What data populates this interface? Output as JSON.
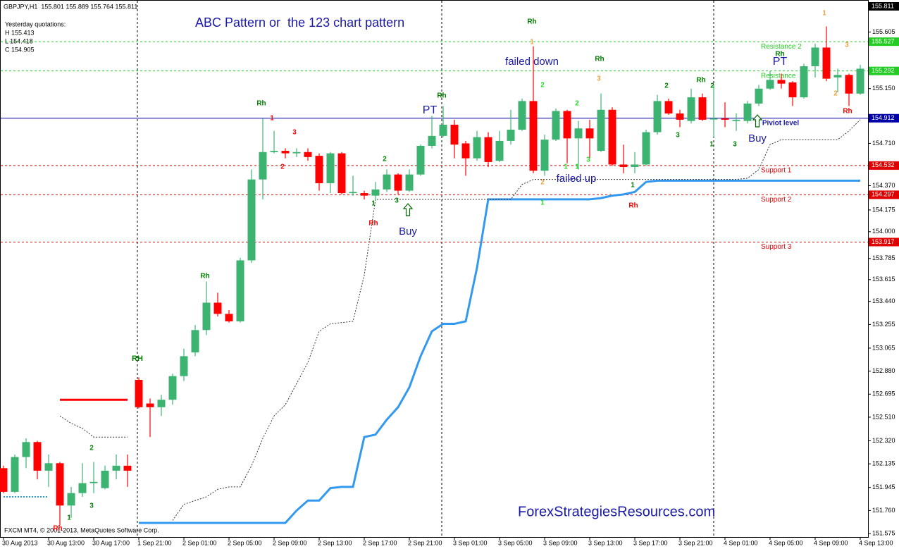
{
  "chart_data": {
    "type": "candlestick",
    "header": "GBPJPY,H1  155.801 155.889 155.764 155.811",
    "info": [
      "Yesterday quotations:",
      "H 155.413",
      "L 154.418",
      "C 154.905"
    ],
    "title": "ABC Pattern or  the 123 chart pattern",
    "watermark": "ForexStrategiesResources.com",
    "footer": "FXCM MT4, © 2001-2013, MetaQuotes Software Corp.",
    "categories": [
      "30 Aug 2013",
      null,
      null,
      null,
      "30 Aug 13:00",
      null,
      null,
      null,
      "30 Aug 17:00",
      null,
      null,
      null,
      "1 Sep 21:00",
      null,
      null,
      null,
      "2 Sep 01:00",
      null,
      null,
      null,
      "2 Sep 05:00",
      null,
      null,
      null,
      "2 Sep 09:00",
      null,
      null,
      null,
      "2 Sep 13:00",
      null,
      null,
      null,
      "2 Sep 17:00",
      null,
      null,
      null,
      "2 Sep 21:00",
      null,
      null,
      null,
      "3 Sep 01:00",
      null,
      null,
      null,
      "3 Sep 05:00",
      null,
      null,
      null,
      "3 Sep 09:00",
      null,
      null,
      null,
      "3 Sep 13:00",
      null,
      null,
      null,
      "3 Sep 17:00",
      null,
      null,
      null,
      "3 Sep 21:00",
      null,
      null,
      null,
      "4 Sep 01:00",
      null,
      null,
      null,
      "4 Sep 05:00",
      null,
      null,
      null,
      "4 Sep 09:00",
      null,
      null,
      null,
      "4 Sep 13:00"
    ],
    "candles": [
      [
        152.1,
        152.12,
        151.9,
        151.91
      ],
      [
        151.91,
        152.21,
        151.9,
        152.19
      ],
      [
        152.19,
        152.34,
        152.1,
        152.31
      ],
      [
        152.31,
        152.32,
        152.01,
        152.08
      ],
      [
        152.08,
        152.21,
        151.95,
        152.14
      ],
      [
        152.14,
        152.15,
        151.64,
        151.8
      ],
      [
        151.8,
        151.95,
        151.7,
        151.9
      ],
      [
        151.9,
        152.14,
        151.87,
        151.98
      ],
      [
        151.98,
        152.15,
        151.9,
        151.99
      ],
      [
        151.94,
        152.12,
        151.93,
        152.08
      ],
      [
        152.08,
        152.21,
        152.01,
        152.12
      ],
      [
        152.12,
        152.21,
        151.95,
        152.08
      ],
      [
        152.81,
        152.83,
        152.58,
        152.59
      ],
      [
        152.62,
        152.66,
        152.35,
        152.59
      ],
      [
        152.59,
        152.69,
        152.52,
        152.65
      ],
      [
        152.65,
        152.86,
        152.61,
        152.84
      ],
      [
        152.84,
        153.06,
        152.8,
        153.0
      ],
      [
        153.03,
        153.25,
        153.0,
        153.21
      ],
      [
        153.21,
        153.6,
        153.17,
        153.43
      ],
      [
        153.43,
        153.51,
        153.32,
        153.34
      ],
      [
        153.34,
        153.37,
        153.27,
        153.28
      ],
      [
        153.28,
        153.79,
        153.27,
        153.77
      ],
      [
        153.77,
        154.5,
        153.75,
        154.42
      ],
      [
        154.42,
        154.91,
        154.26,
        154.64
      ],
      [
        154.64,
        154.81,
        154.63,
        154.65
      ],
      [
        154.65,
        154.67,
        154.59,
        154.63
      ],
      [
        154.63,
        154.67,
        154.6,
        154.64
      ],
      [
        154.64,
        154.67,
        154.57,
        154.6
      ],
      [
        154.61,
        154.63,
        154.33,
        154.39
      ],
      [
        154.39,
        154.64,
        154.31,
        154.63
      ],
      [
        154.63,
        154.64,
        154.3,
        154.31
      ],
      [
        154.31,
        154.45,
        154.29,
        154.32
      ],
      [
        154.31,
        154.33,
        154.26,
        154.29
      ],
      [
        154.29,
        154.4,
        154.25,
        154.34
      ],
      [
        154.34,
        154.5,
        154.32,
        154.46
      ],
      [
        154.46,
        154.47,
        154.3,
        154.33
      ],
      [
        154.33,
        154.5,
        154.32,
        154.46
      ],
      [
        154.46,
        154.7,
        154.45,
        154.69
      ],
      [
        154.69,
        154.93,
        154.67,
        154.77
      ],
      [
        154.77,
        155.01,
        154.76,
        154.86
      ],
      [
        154.86,
        154.9,
        154.59,
        154.7
      ],
      [
        154.71,
        154.73,
        154.45,
        154.59
      ],
      [
        154.59,
        154.81,
        154.57,
        154.76
      ],
      [
        154.76,
        154.8,
        154.52,
        154.56
      ],
      [
        154.57,
        154.81,
        154.56,
        154.73
      ],
      [
        154.73,
        154.98,
        154.7,
        154.82
      ],
      [
        154.82,
        155.07,
        154.81,
        155.05
      ],
      [
        155.05,
        155.49,
        154.47,
        154.49
      ],
      [
        154.49,
        154.78,
        154.45,
        154.74
      ],
      [
        154.74,
        154.99,
        154.73,
        154.97
      ],
      [
        154.97,
        154.98,
        154.55,
        154.75
      ],
      [
        154.75,
        154.89,
        154.5,
        154.83
      ],
      [
        154.83,
        154.9,
        154.59,
        154.75
      ],
      [
        154.65,
        155.11,
        154.64,
        154.98
      ],
      [
        154.98,
        155.0,
        154.53,
        154.54
      ],
      [
        154.54,
        154.7,
        154.47,
        154.52
      ],
      [
        154.52,
        154.64,
        154.47,
        154.54
      ],
      [
        154.54,
        154.82,
        154.53,
        154.8
      ],
      [
        154.8,
        155.1,
        154.78,
        155.05
      ],
      [
        155.05,
        155.07,
        154.94,
        154.95
      ],
      [
        154.95,
        154.98,
        154.84,
        154.9
      ],
      [
        154.89,
        155.15,
        154.87,
        155.08
      ],
      [
        155.08,
        155.11,
        154.89,
        154.9
      ],
      [
        154.91,
        155.18,
        154.76,
        154.91
      ],
      [
        154.91,
        155.04,
        154.84,
        154.9
      ],
      [
        154.89,
        154.95,
        154.81,
        154.9
      ],
      [
        154.89,
        155.05,
        154.87,
        155.03
      ],
      [
        155.03,
        155.18,
        155.01,
        155.15
      ],
      [
        155.15,
        155.29,
        155.14,
        155.22
      ],
      [
        155.22,
        155.27,
        155.15,
        155.19
      ],
      [
        155.2,
        155.21,
        155.01,
        155.08
      ],
      [
        155.08,
        155.35,
        155.07,
        155.33
      ],
      [
        155.33,
        155.51,
        155.24,
        155.48
      ],
      [
        155.48,
        155.65,
        155.21,
        155.23
      ],
      [
        155.24,
        155.31,
        155.12,
        155.26
      ],
      [
        155.26,
        155.27,
        155.01,
        155.11
      ],
      [
        155.11,
        155.34,
        155.1,
        155.31
      ]
    ],
    "up_color": "#3cb371",
    "down_color": "#ff0000",
    "ylim": [
      151.547,
      155.862
    ],
    "yticks": [
      155.605,
      {
        "value": 155.15,
        "label": "155.150"
      },
      {
        "value": 154.71,
        "label": "154.710"
      },
      {
        "value": 154.37,
        "label": "154.370"
      },
      154.175,
      {
        "value": 154,
        "label": "154.000"
      },
      153.785,
      153.615,
      {
        "value": 153.44,
        "label": "153.440"
      },
      153.255,
      153.065,
      {
        "value": 152.88,
        "label": "152.880"
      },
      152.695,
      {
        "value": 152.51,
        "label": "152.510"
      },
      {
        "value": 152.32,
        "label": "152.320"
      },
      152.135,
      151.945,
      {
        "value": 151.76,
        "label": "151.760"
      },
      151.575
    ],
    "last_price": 155.811,
    "levels": [
      {
        "value": 155.527,
        "name": "Resistance 2",
        "color": "#22cc22",
        "style": "dashed"
      },
      {
        "value": 155.292,
        "name": "Resistance",
        "color": "#22cc22",
        "style": "dashed"
      },
      {
        "value": 154.912,
        "color": "#0000aa",
        "style": "solid"
      },
      {
        "value": 154.532,
        "name": "Support 1",
        "color": "#e00000",
        "style": "dashed"
      },
      {
        "value": 154.297,
        "name": "Support 2",
        "color": "#e00000",
        "style": "dashed"
      },
      {
        "value": 153.917,
        "name": "Support 3",
        "color": "#e00000",
        "style": "dashed"
      }
    ],
    "lines": [
      {
        "color": "#3399ee",
        "width": 3,
        "dash": "none",
        "values": [
          null,
          null,
          null,
          null,
          null,
          null,
          null,
          null,
          null,
          null,
          null,
          null,
          151.66,
          151.66,
          151.66,
          151.66,
          151.66,
          151.66,
          151.66,
          151.66,
          151.66,
          151.66,
          151.66,
          151.66,
          151.66,
          151.66,
          151.76,
          151.84,
          151.84,
          151.94,
          151.95,
          151.95,
          152.35,
          152.37,
          152.49,
          152.59,
          152.75,
          153.0,
          153.2,
          153.26,
          153.26,
          153.28,
          153.71,
          154.26,
          154.26,
          154.26,
          154.26,
          154.26,
          154.26,
          154.26,
          154.26,
          154.26,
          154.26,
          154.27,
          154.29,
          154.3,
          154.32,
          154.4,
          154.41,
          154.41,
          154.41,
          154.41,
          154.41,
          154.41,
          154.41,
          154.41,
          154.41,
          154.41,
          154.41,
          154.41,
          154.41,
          154.41,
          154.41,
          154.41,
          154.41,
          154.41,
          154.41
        ]
      },
      {
        "color": "#3399ee",
        "width": 2,
        "dash": "2 2",
        "values": [
          151.87,
          151.87,
          151.87,
          151.87,
          151.87,
          null,
          null,
          null,
          null,
          null,
          null,
          null,
          null,
          null,
          null,
          null,
          null,
          null,
          null,
          null,
          null,
          null,
          null,
          null,
          null,
          null,
          null,
          null,
          null,
          null,
          null,
          null,
          null,
          null,
          null,
          null,
          null,
          null,
          null,
          null,
          null,
          null,
          null,
          null,
          null,
          null,
          null,
          null,
          null,
          null,
          null,
          null,
          null,
          null,
          null,
          null,
          null,
          null,
          null,
          null,
          null,
          null,
          null,
          null,
          null,
          null,
          null,
          null,
          null,
          null,
          null,
          null,
          null,
          null,
          null,
          null,
          null
        ]
      },
      {
        "color": "#ff0000",
        "width": 3,
        "dash": "none",
        "values": [
          null,
          null,
          null,
          null,
          null,
          152.65,
          152.65,
          152.65,
          152.65,
          152.65,
          152.65,
          152.65,
          null,
          null,
          null,
          null,
          null,
          null,
          null,
          null,
          null,
          null,
          null,
          null,
          null,
          null,
          null,
          null,
          null,
          null,
          null,
          null,
          null,
          null,
          null,
          null,
          null,
          null,
          null,
          null,
          null,
          null,
          null,
          null,
          null,
          null,
          null,
          null,
          null,
          null,
          null,
          null,
          null,
          null,
          null,
          null,
          null,
          null,
          null,
          null,
          null,
          null,
          null,
          null,
          null,
          null,
          null,
          null,
          null,
          null,
          null,
          null,
          null,
          null,
          null,
          null,
          null
        ]
      },
      {
        "color": "#333333",
        "width": 1,
        "dash": "2 2",
        "values": [
          null,
          null,
          null,
          null,
          null,
          152.52,
          152.46,
          152.42,
          152.35,
          152.35,
          152.35,
          152.35,
          null,
          null,
          null,
          151.68,
          151.81,
          151.84,
          151.87,
          151.93,
          151.95,
          151.95,
          152.12,
          152.34,
          152.52,
          152.61,
          152.78,
          152.95,
          153.2,
          153.26,
          153.27,
          153.28,
          153.65,
          154.26,
          154.26,
          154.26,
          154.26,
          154.26,
          154.26,
          154.26,
          154.26,
          154.26,
          154.26,
          154.26,
          154.26,
          154.26,
          154.38,
          154.42,
          154.42,
          154.42,
          154.42,
          154.42,
          154.42,
          154.42,
          154.42,
          154.42,
          154.42,
          154.42,
          154.42,
          154.42,
          154.42,
          154.42,
          154.42,
          154.42,
          154.42,
          154.42,
          154.43,
          154.5,
          154.7,
          154.74,
          154.74,
          154.74,
          154.74,
          154.74,
          154.74,
          154.81,
          154.9
        ]
      }
    ],
    "annotations": [
      {
        "text": "RH",
        "color": "#008000"
      },
      {
        "text": "Rh",
        "color": "#008000"
      },
      {
        "text": "Rh",
        "color": "#008000"
      },
      {
        "text": "Rh",
        "color": "#ff0000"
      },
      {
        "text": "Rh",
        "color": "#008000"
      },
      {
        "text": "Rh",
        "color": "#008000"
      },
      {
        "text": "Rh",
        "color": "#008000"
      },
      {
        "text": "Rh",
        "color": "#ff0000"
      },
      {
        "text": "Rh",
        "color": "#008000"
      },
      {
        "text": "Rh",
        "color": "#008000"
      },
      {
        "text": "Rh",
        "color": "#ff0000"
      },
      {
        "text": "Rh",
        "color": "#ff0000"
      },
      {
        "text": "1",
        "color": "#ff0000"
      },
      {
        "text": "3",
        "color": "#ff0000"
      },
      {
        "text": "2",
        "color": "#ff0000"
      },
      {
        "text": "2",
        "color": "#008000"
      },
      {
        "text": "3",
        "color": "#008000"
      },
      {
        "text": "1",
        "color": "#008000"
      },
      {
        "text": "2",
        "color": "#008000"
      },
      {
        "text": "1",
        "color": "#008000"
      },
      {
        "text": "3",
        "color": "#008000"
      },
      {
        "text": "1",
        "color": "#e8a33d"
      },
      {
        "text": "2",
        "color": "#22dd22"
      },
      {
        "text": "2",
        "color": "#e8a33d"
      },
      {
        "text": "1",
        "color": "#22dd22"
      },
      {
        "text": "3",
        "color": "#e8a33d"
      },
      {
        "text": "2",
        "color": "#22dd22"
      },
      {
        "text": "1",
        "color": "#22dd22"
      },
      {
        "text": "1",
        "color": "#22dd22"
      },
      {
        "text": "3",
        "color": "#22dd22"
      },
      {
        "text": "1",
        "color": "#008000"
      },
      {
        "text": "2",
        "color": "#008000"
      },
      {
        "text": "3",
        "color": "#008000"
      },
      {
        "text": "2",
        "color": "#008000"
      },
      {
        "text": "1",
        "color": "#008000"
      },
      {
        "text": "3",
        "color": "#008000"
      },
      {
        "text": "1",
        "color": "#e8a33d"
      },
      {
        "text": "3",
        "color": "#e8a33d"
      },
      {
        "text": "2",
        "color": "#e8a33d"
      },
      {
        "text": "PT",
        "color": "#1a1aa6"
      },
      {
        "text": "PT",
        "color": "#1a1aa6"
      },
      {
        "text": "Buy",
        "color": "#1a1aa6"
      },
      {
        "text": "Buy",
        "color": "#1a1aa6"
      },
      {
        "text": "failed down",
        "color": "#1a1aa6"
      },
      {
        "text": "failed up",
        "color": "#1a1aa6"
      },
      {
        "text": "Piviot level",
        "color": "#1a1aa6"
      }
    ]
  }
}
